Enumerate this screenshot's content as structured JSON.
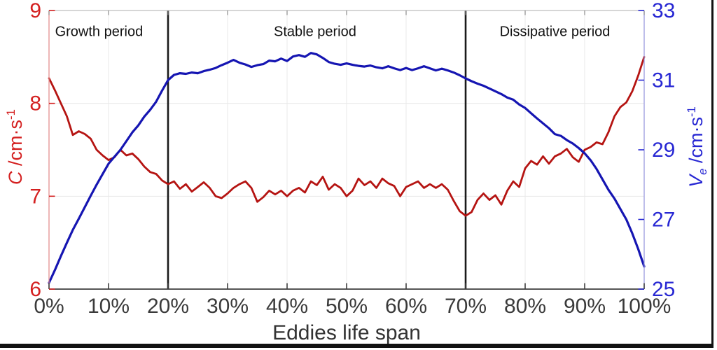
{
  "chart_data": {
    "type": "line",
    "xlabel": "Eddies life span",
    "x_axis": {
      "range_pct": [
        0,
        100
      ],
      "tick_pcts": [
        0,
        10,
        20,
        30,
        40,
        50,
        60,
        70,
        80,
        90,
        100
      ],
      "tick_labels": [
        "0%",
        "10%",
        "20%",
        "30%",
        "40%",
        "50%",
        "60%",
        "70%",
        "80%",
        "90%",
        "100%"
      ]
    },
    "left_axis": {
      "label_symbol": "C",
      "label_unit": " /cm·s",
      "label_sup": "-1",
      "range": [
        6,
        9
      ],
      "ticks": [
        6,
        7,
        8,
        9
      ],
      "tick_labels": [
        "6",
        "7",
        "8",
        "9"
      ],
      "color": "#d42020"
    },
    "right_axis": {
      "label_symbol": "V",
      "label_sub": "e",
      "label_unit": " /cm·s",
      "label_sup": "-1",
      "range": [
        25,
        33
      ],
      "ticks": [
        25,
        27,
        29,
        31,
        33
      ],
      "tick_labels": [
        "25",
        "27",
        "29",
        "31",
        "33"
      ],
      "color": "#2727d3"
    },
    "dividers_pct": [
      20,
      70
    ],
    "periods": [
      {
        "label": "Growth period",
        "center_pct": 8.4
      },
      {
        "label": "Stable period",
        "center_pct": 44.7
      },
      {
        "label": "Dissipative period",
        "center_pct": 85
      }
    ],
    "x_step_pct": 1,
    "series": [
      {
        "name": "C",
        "axis": "left",
        "color": "#b51412",
        "values": [
          8.27,
          8.14,
          8.0,
          7.86,
          7.66,
          7.7,
          7.67,
          7.62,
          7.5,
          7.44,
          7.39,
          7.42,
          7.5,
          7.44,
          7.46,
          7.4,
          7.32,
          7.26,
          7.24,
          7.17,
          7.13,
          7.16,
          7.08,
          7.13,
          7.05,
          7.1,
          7.15,
          7.09,
          7.0,
          6.98,
          7.03,
          7.09,
          7.13,
          7.16,
          7.09,
          6.94,
          6.99,
          7.06,
          7.02,
          7.06,
          7.0,
          7.06,
          7.09,
          7.04,
          7.16,
          7.12,
          7.21,
          7.07,
          7.13,
          7.09,
          7.0,
          7.06,
          7.19,
          7.12,
          7.16,
          7.09,
          7.19,
          7.14,
          7.11,
          7.0,
          7.1,
          7.13,
          7.16,
          7.09,
          7.13,
          7.09,
          7.13,
          7.07,
          6.95,
          6.84,
          6.79,
          6.83,
          6.96,
          7.03,
          6.96,
          7.01,
          6.91,
          7.06,
          7.16,
          7.1,
          7.3,
          7.38,
          7.34,
          7.43,
          7.35,
          7.43,
          7.46,
          7.51,
          7.42,
          7.37,
          7.5,
          7.53,
          7.58,
          7.56,
          7.69,
          7.86,
          7.96,
          8.01,
          8.13,
          8.3,
          8.5
        ]
      },
      {
        "name": "Ve",
        "axis": "right",
        "color": "#1515b2",
        "values": [
          25.18,
          25.55,
          25.95,
          26.33,
          26.7,
          27.02,
          27.35,
          27.68,
          28.0,
          28.3,
          28.6,
          28.8,
          29.0,
          29.25,
          29.5,
          29.7,
          29.95,
          30.15,
          30.38,
          30.7,
          31.0,
          31.15,
          31.2,
          31.18,
          31.22,
          31.2,
          31.26,
          31.3,
          31.35,
          31.43,
          31.5,
          31.58,
          31.5,
          31.45,
          31.38,
          31.43,
          31.46,
          31.56,
          31.54,
          31.62,
          31.55,
          31.68,
          31.72,
          31.67,
          31.78,
          31.74,
          31.64,
          31.52,
          31.47,
          31.44,
          31.48,
          31.44,
          31.41,
          31.39,
          31.42,
          31.37,
          31.34,
          31.4,
          31.34,
          31.29,
          31.35,
          31.29,
          31.34,
          31.4,
          31.34,
          31.28,
          31.33,
          31.28,
          31.22,
          31.14,
          31.05,
          30.97,
          30.9,
          30.84,
          30.76,
          30.68,
          30.6,
          30.5,
          30.44,
          30.3,
          30.2,
          30.05,
          29.9,
          29.76,
          29.62,
          29.45,
          29.4,
          29.28,
          29.18,
          29.05,
          28.9,
          28.7,
          28.45,
          28.15,
          27.85,
          27.6,
          27.3,
          27.0,
          26.6,
          26.15,
          25.65
        ]
      }
    ],
    "style": {
      "grid_color": "#e8e8e8",
      "divider_color": "#1a1a1a",
      "x_tick_label_color": "#3a3a3a",
      "left_spine_color": "#e39090",
      "right_spine_color": "#9a9ade",
      "top_spine_color": "#bdbdbd",
      "bottom_spine_color": "#3e3e3e"
    }
  }
}
